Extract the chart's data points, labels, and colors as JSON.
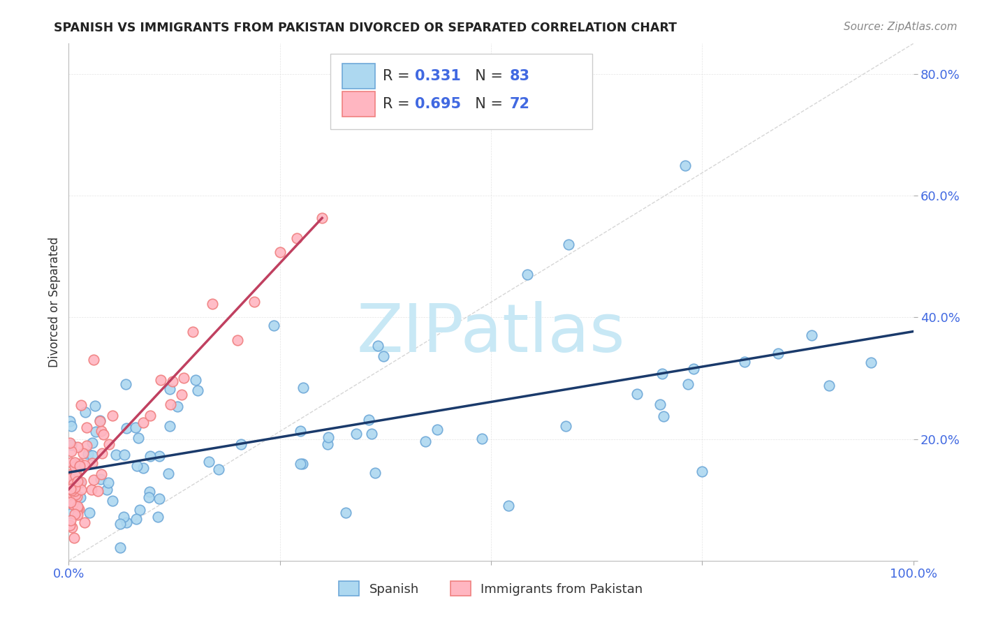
{
  "title": "SPANISH VS IMMIGRANTS FROM PAKISTAN DIVORCED OR SEPARATED CORRELATION CHART",
  "source": "Source: ZipAtlas.com",
  "ylabel": "Divorced or Separated",
  "xlim": [
    0,
    1.0
  ],
  "ylim": [
    0,
    0.85
  ],
  "xtick_positions": [
    0.0,
    0.25,
    0.5,
    0.75,
    1.0
  ],
  "xtick_labels": [
    "0.0%",
    "",
    "",
    "",
    "100.0%"
  ],
  "ytick_positions": [
    0.0,
    0.2,
    0.4,
    0.6,
    0.8
  ],
  "ytick_labels": [
    "",
    "20.0%",
    "40.0%",
    "60.0%",
    "80.0%"
  ],
  "blue_edge": "#6EA8D8",
  "blue_face": "#ADD8F0",
  "pink_edge": "#F08080",
  "pink_face": "#FFB6C1",
  "line_blue": "#1A3A6B",
  "line_pink": "#C04060",
  "diagonal_color": "#CCCCCC",
  "tick_label_color": "#4169E1",
  "R_blue": 0.331,
  "N_blue": 83,
  "R_pink": 0.695,
  "N_pink": 72,
  "legend_label_blue": "Spanish",
  "legend_label_pink": "Immigrants from Pakistan",
  "watermark": "ZIPatlas",
  "watermark_color": "#C8E8F5",
  "grid_color": "#DDDDDD",
  "background": "#FFFFFF"
}
